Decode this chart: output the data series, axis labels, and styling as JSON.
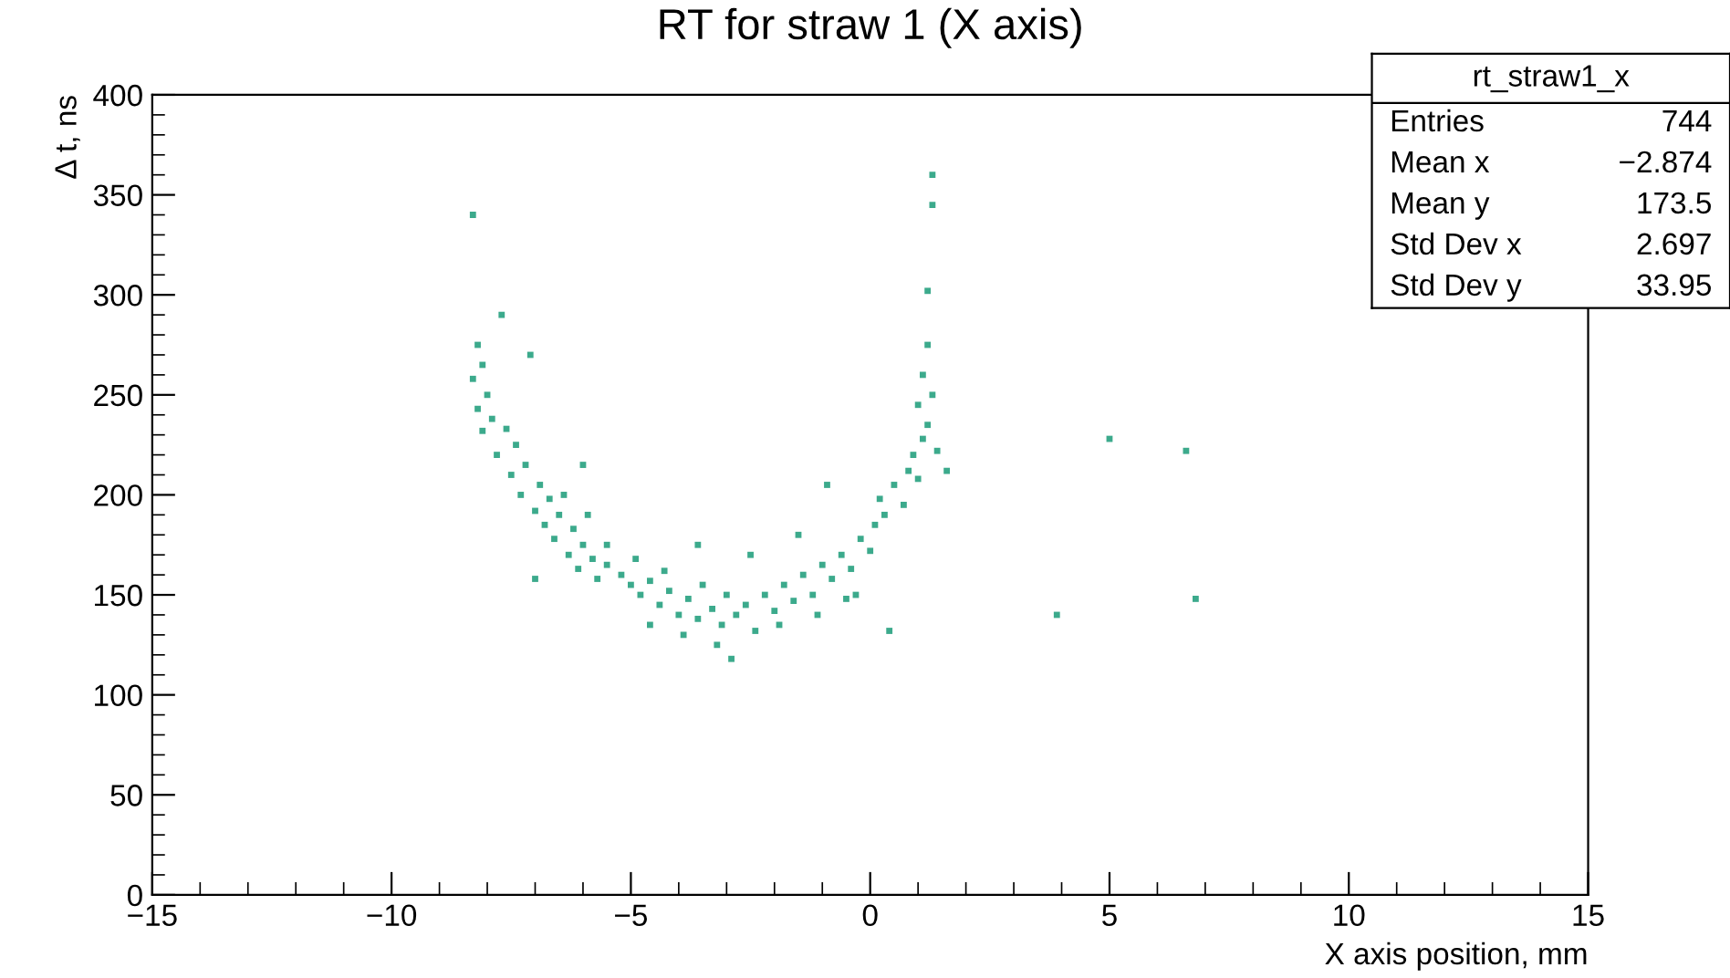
{
  "chart_data": {
    "type": "scatter",
    "title": "RT for straw 1 (X axis)",
    "xlabel": "X axis position, mm",
    "ylabel": "Δ t, ns",
    "xlim": [
      -15,
      15
    ],
    "ylim": [
      0,
      400
    ],
    "xticks": [
      {
        "value": -15,
        "label": "−15"
      },
      {
        "value": -10,
        "label": "−10"
      },
      {
        "value": -5,
        "label": "−5"
      },
      0,
      5,
      10,
      15
    ],
    "yticks": [
      0,
      50,
      100,
      150,
      200,
      250,
      300,
      350,
      400
    ],
    "grid": false,
    "legend": false,
    "marker": "square",
    "annotations": [
      "rt_straw1_x",
      "Entries",
      "744",
      "Mean x",
      "−2.874",
      "Mean y",
      "173.5",
      "Std Dev x",
      "2.697",
      "Std Dev y",
      "33.95"
    ],
    "series": [
      {
        "color": "#3caa8c",
        "x": [
          -8.2,
          -8.1,
          -8.3,
          -8.0,
          -8.2,
          -7.9,
          -8.1,
          -7.7,
          -7.6,
          -7.4,
          -7.8,
          -7.2,
          -7.5,
          -6.9,
          -7.3,
          -6.7,
          -7.0,
          -6.5,
          -6.8,
          -6.2,
          -6.6,
          -6.0,
          -6.3,
          -5.8,
          -6.1,
          -5.5,
          -5.7,
          -5.2,
          -5.0,
          -4.8,
          -4.6,
          -4.4,
          -4.2,
          -4.0,
          -3.8,
          -3.6,
          -3.5,
          -3.3,
          -3.1,
          -3.0,
          -2.8,
          -2.6,
          -2.4,
          -2.2,
          -2.0,
          -1.8,
          -1.6,
          -1.4,
          -1.2,
          -1.0,
          -0.8,
          -0.6,
          -0.4,
          -0.2,
          0.0,
          0.1,
          0.3,
          0.2,
          0.5,
          0.7,
          0.8,
          0.9,
          1.0,
          1.1,
          1.2,
          1.0,
          1.3,
          1.1,
          1.2,
          1.4,
          1.6,
          -5.5,
          -4.9,
          -4.3,
          -3.9,
          -3.2,
          -2.5,
          -1.9,
          -1.1,
          -0.5,
          -4.6,
          -2.9,
          -5.9,
          -6.4,
          -3.6,
          -1.5,
          -0.9,
          -0.3,
          -7.1,
          -6.0,
          -8.3,
          1.3,
          1.3,
          1.2,
          5.0,
          6.6,
          6.8,
          3.9,
          0.4,
          -7.0
        ],
        "values": [
          275,
          265,
          258,
          250,
          243,
          238,
          232,
          290,
          233,
          225,
          220,
          215,
          210,
          205,
          200,
          198,
          192,
          190,
          185,
          183,
          178,
          175,
          170,
          168,
          163,
          165,
          158,
          160,
          155,
          150,
          157,
          145,
          152,
          140,
          148,
          138,
          155,
          143,
          135,
          150,
          140,
          145,
          132,
          150,
          142,
          155,
          147,
          160,
          150,
          165,
          158,
          170,
          163,
          178,
          172,
          185,
          190,
          198,
          205,
          195,
          212,
          220,
          208,
          228,
          235,
          245,
          250,
          260,
          275,
          222,
          212,
          175,
          168,
          162,
          130,
          125,
          170,
          135,
          140,
          148,
          135,
          118,
          190,
          200,
          175,
          180,
          205,
          150,
          270,
          215,
          340,
          360,
          345,
          302,
          228,
          222,
          148,
          140,
          132,
          158
        ]
      }
    ]
  }
}
